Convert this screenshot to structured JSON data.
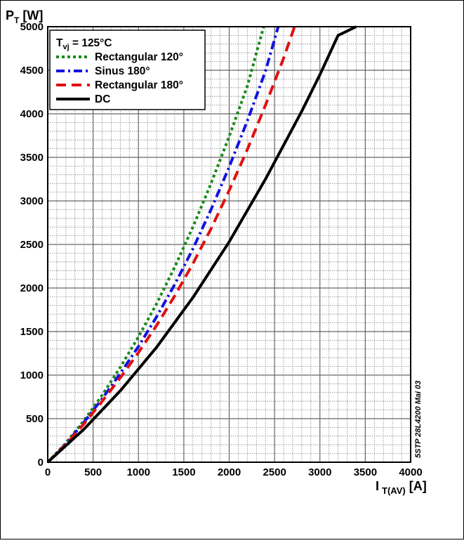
{
  "chart_data": {
    "type": "line",
    "ylabel": {
      "main": "P",
      "sub": "T",
      "unit": " [W]"
    },
    "xlabel": {
      "main": "I",
      "sub": "T(AV)",
      "unit": " [A]"
    },
    "xlim": [
      0,
      4000
    ],
    "ylim": [
      0,
      5000
    ],
    "x_ticks": [
      0,
      500,
      1000,
      1500,
      2000,
      2500,
      3000,
      3500,
      4000
    ],
    "y_ticks": [
      0,
      500,
      1000,
      1500,
      2000,
      2500,
      3000,
      3500,
      4000,
      4500,
      5000
    ],
    "grid": true,
    "legend_position": "top-left",
    "legend_header": {
      "main": "T",
      "sub": "vj",
      "rest": " = 125°C"
    },
    "side_note": "5STP 28L4200 Mai 03",
    "series": [
      {
        "name": "Rectangular 120°",
        "color": "#1a8a1a",
        "dash": "dotted",
        "x": [
          0,
          200,
          400,
          600,
          800,
          1000,
          1200,
          1400,
          1600,
          1800,
          2000,
          2200,
          2380
        ],
        "y": [
          0,
          220,
          480,
          770,
          1090,
          1440,
          1820,
          2240,
          2700,
          3200,
          3740,
          4320,
          5000
        ]
      },
      {
        "name": "Sinus 180°",
        "color": "#1212e0",
        "dash": "dashdot",
        "x": [
          0,
          200,
          400,
          600,
          800,
          1000,
          1200,
          1400,
          1600,
          1800,
          2000,
          2200,
          2400,
          2540
        ],
        "y": [
          0,
          210,
          460,
          730,
          1020,
          1330,
          1670,
          2040,
          2450,
          2900,
          3390,
          3920,
          4490,
          5000
        ]
      },
      {
        "name": "Rectangular 180°",
        "color": "#e01010",
        "dash": "dashed",
        "x": [
          0,
          200,
          400,
          600,
          800,
          1000,
          1200,
          1400,
          1600,
          1800,
          2000,
          2200,
          2400,
          2600,
          2720
        ],
        "y": [
          0,
          205,
          440,
          700,
          970,
          1260,
          1570,
          1910,
          2280,
          2680,
          3120,
          3590,
          4100,
          4640,
          5000
        ]
      },
      {
        "name": "DC",
        "color": "#000000",
        "dash": "solid",
        "x": [
          0,
          400,
          800,
          1200,
          1600,
          2000,
          2400,
          2800,
          3000,
          3200,
          3400
        ],
        "y": [
          0,
          380,
          820,
          1320,
          1890,
          2530,
          3250,
          4030,
          4450,
          4900,
          5000
        ]
      }
    ]
  }
}
